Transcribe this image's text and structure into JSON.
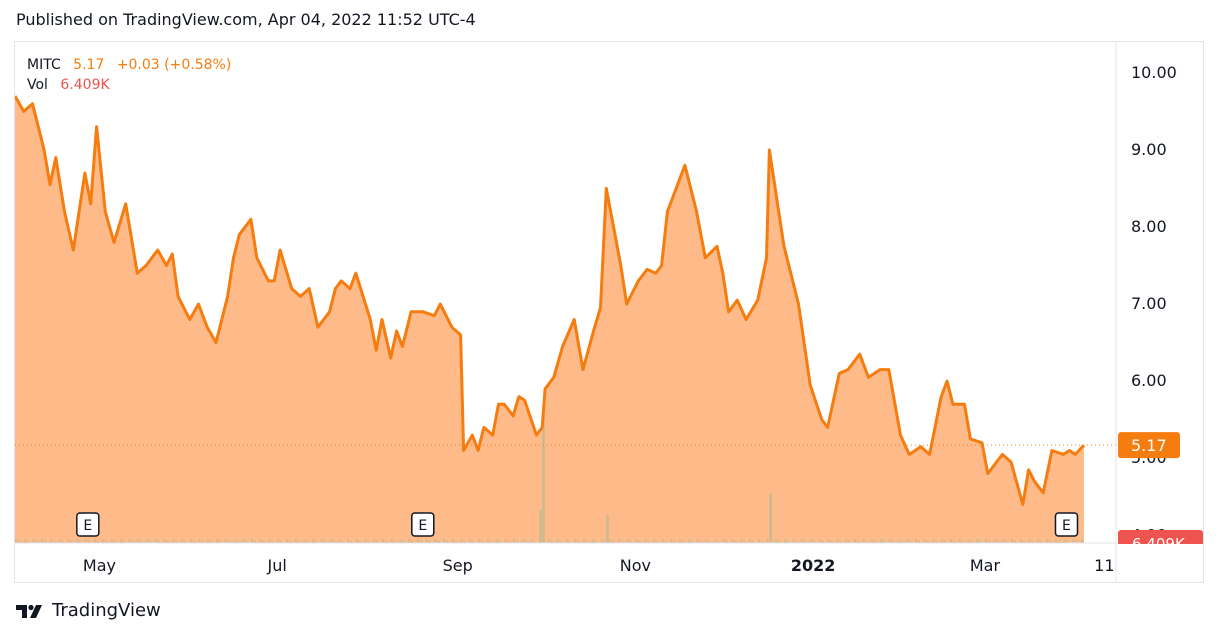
{
  "header": {
    "published": "Published on TradingView.com, Apr 04, 2022 11:52 UTC-4"
  },
  "legend": {
    "symbol": "MITC",
    "price": "5.17",
    "change": "+0.03 (+0.58%)",
    "vol_label": "Vol",
    "vol_value": "6.409K"
  },
  "footer": {
    "brand": "TradingView"
  },
  "colors": {
    "line": "#f57c0f",
    "area": "#ffb27d",
    "axis_badge": "#f57c0f",
    "volume": "#c9b98f",
    "vol_badge": "#ef5350"
  },
  "icons": [
    "tradingview-logo-icon",
    "earnings-marker-icon"
  ],
  "chart_data": {
    "type": "area",
    "title": "",
    "xlabel": "",
    "ylabel": "",
    "ylim": [
      3.9,
      10.4
    ],
    "y_ticks": [
      "10.00",
      "9.00",
      "8.00",
      "7.00",
      "6.00",
      "5.00",
      "4.00"
    ],
    "x_tick_labels": [
      "May",
      "Jul",
      "Sep",
      "Nov",
      "2022",
      "Mar",
      "11"
    ],
    "x_tick_dates": [
      "2021-05-01",
      "2021-07-01",
      "2021-09-01",
      "2021-11-01",
      "2022-01-01",
      "2022-03-01",
      "2022-04-11"
    ],
    "x_range": [
      "2021-04-02",
      "2022-04-15"
    ],
    "last_price_label": "5.17",
    "volume_badge": "6.409K",
    "grid": false,
    "earnings_markers": [
      {
        "label": "E",
        "date": "2021-04-27"
      },
      {
        "label": "E",
        "date": "2021-08-20"
      },
      {
        "label": "E",
        "date": "2022-03-29"
      }
    ],
    "series": [
      {
        "values": [
          [
            "2021-04-02",
            9.7
          ],
          [
            "2021-04-05",
            9.5
          ],
          [
            "2021-04-08",
            9.6
          ],
          [
            "2021-04-12",
            9.0
          ],
          [
            "2021-04-14",
            8.55
          ],
          [
            "2021-04-16",
            8.9
          ],
          [
            "2021-04-19",
            8.2
          ],
          [
            "2021-04-22",
            7.7
          ],
          [
            "2021-04-26",
            8.7
          ],
          [
            "2021-04-28",
            8.3
          ],
          [
            "2021-04-30",
            9.3
          ],
          [
            "2021-05-03",
            8.2
          ],
          [
            "2021-05-06",
            7.8
          ],
          [
            "2021-05-10",
            8.3
          ],
          [
            "2021-05-14",
            7.4
          ],
          [
            "2021-05-17",
            7.5
          ],
          [
            "2021-05-21",
            7.7
          ],
          [
            "2021-05-24",
            7.5
          ],
          [
            "2021-05-26",
            7.65
          ],
          [
            "2021-05-28",
            7.1
          ],
          [
            "2021-06-01",
            6.8
          ],
          [
            "2021-06-04",
            7.0
          ],
          [
            "2021-06-07",
            6.7
          ],
          [
            "2021-06-10",
            6.5
          ],
          [
            "2021-06-14",
            7.1
          ],
          [
            "2021-06-16",
            7.6
          ],
          [
            "2021-06-18",
            7.9
          ],
          [
            "2021-06-22",
            8.1
          ],
          [
            "2021-06-24",
            7.6
          ],
          [
            "2021-06-28",
            7.3
          ],
          [
            "2021-06-30",
            7.3
          ],
          [
            "2021-07-02",
            7.7
          ],
          [
            "2021-07-06",
            7.2
          ],
          [
            "2021-07-09",
            7.1
          ],
          [
            "2021-07-12",
            7.2
          ],
          [
            "2021-07-15",
            6.7
          ],
          [
            "2021-07-19",
            6.9
          ],
          [
            "2021-07-21",
            7.2
          ],
          [
            "2021-07-23",
            7.3
          ],
          [
            "2021-07-26",
            7.2
          ],
          [
            "2021-07-28",
            7.4
          ],
          [
            "2021-08-02",
            6.8
          ],
          [
            "2021-08-04",
            6.4
          ],
          [
            "2021-08-06",
            6.8
          ],
          [
            "2021-08-09",
            6.3
          ],
          [
            "2021-08-11",
            6.65
          ],
          [
            "2021-08-13",
            6.45
          ],
          [
            "2021-08-16",
            6.9
          ],
          [
            "2021-08-20",
            6.9
          ],
          [
            "2021-08-24",
            6.85
          ],
          [
            "2021-08-26",
            7.0
          ],
          [
            "2021-08-30",
            6.7
          ],
          [
            "2021-09-02",
            6.6
          ],
          [
            "2021-09-03",
            5.1
          ],
          [
            "2021-09-06",
            5.3
          ],
          [
            "2021-09-08",
            5.1
          ],
          [
            "2021-09-10",
            5.4
          ],
          [
            "2021-09-13",
            5.3
          ],
          [
            "2021-09-15",
            5.7
          ],
          [
            "2021-09-17",
            5.7
          ],
          [
            "2021-09-20",
            5.55
          ],
          [
            "2021-09-22",
            5.8
          ],
          [
            "2021-09-24",
            5.75
          ],
          [
            "2021-09-28",
            5.3
          ],
          [
            "2021-09-30",
            5.4
          ],
          [
            "2021-10-01",
            5.9
          ],
          [
            "2021-10-04",
            6.05
          ],
          [
            "2021-10-07",
            6.45
          ],
          [
            "2021-10-11",
            6.8
          ],
          [
            "2021-10-14",
            6.15
          ],
          [
            "2021-10-18",
            6.7
          ],
          [
            "2021-10-20",
            6.95
          ],
          [
            "2021-10-22",
            8.5
          ],
          [
            "2021-10-25",
            7.9
          ],
          [
            "2021-10-27",
            7.5
          ],
          [
            "2021-10-29",
            7.0
          ],
          [
            "2021-11-02",
            7.3
          ],
          [
            "2021-11-05",
            7.45
          ],
          [
            "2021-11-08",
            7.4
          ],
          [
            "2021-11-10",
            7.5
          ],
          [
            "2021-11-12",
            8.2
          ],
          [
            "2021-11-16",
            8.6
          ],
          [
            "2021-11-18",
            8.8
          ],
          [
            "2021-11-22",
            8.2
          ],
          [
            "2021-11-25",
            7.6
          ],
          [
            "2021-11-29",
            7.75
          ],
          [
            "2021-12-01",
            7.4
          ],
          [
            "2021-12-03",
            6.9
          ],
          [
            "2021-12-06",
            7.05
          ],
          [
            "2021-12-09",
            6.8
          ],
          [
            "2021-12-13",
            7.05
          ],
          [
            "2021-12-16",
            7.6
          ],
          [
            "2021-12-17",
            9.0
          ],
          [
            "2021-12-20",
            8.25
          ],
          [
            "2021-12-22",
            7.75
          ],
          [
            "2021-12-27",
            7.0
          ],
          [
            "2021-12-31",
            5.95
          ],
          [
            "2022-01-04",
            5.5
          ],
          [
            "2022-01-06",
            5.4
          ],
          [
            "2022-01-10",
            6.1
          ],
          [
            "2022-01-13",
            6.15
          ],
          [
            "2022-01-17",
            6.35
          ],
          [
            "2022-01-20",
            6.05
          ],
          [
            "2022-01-24",
            6.15
          ],
          [
            "2022-01-27",
            6.15
          ],
          [
            "2022-01-31",
            5.3
          ],
          [
            "2022-02-03",
            5.05
          ],
          [
            "2022-02-07",
            5.15
          ],
          [
            "2022-02-10",
            5.05
          ],
          [
            "2022-02-14",
            5.8
          ],
          [
            "2022-02-16",
            6.0
          ],
          [
            "2022-02-18",
            5.7
          ],
          [
            "2022-02-22",
            5.7
          ],
          [
            "2022-02-24",
            5.25
          ],
          [
            "2022-02-28",
            5.2
          ],
          [
            "2022-03-02",
            4.8
          ],
          [
            "2022-03-07",
            5.05
          ],
          [
            "2022-03-10",
            4.95
          ],
          [
            "2022-03-14",
            4.4
          ],
          [
            "2022-03-16",
            4.85
          ],
          [
            "2022-03-18",
            4.7
          ],
          [
            "2022-03-21",
            4.55
          ],
          [
            "2022-03-24",
            5.1
          ],
          [
            "2022-03-28",
            5.05
          ],
          [
            "2022-03-30",
            5.1
          ],
          [
            "2022-04-01",
            5.05
          ],
          [
            "2022-04-04",
            5.17
          ]
        ]
      }
    ],
    "volume": {
      "note": "relative volume bars, mostly small",
      "spikes": [
        [
          "2021-09-30",
          1.0
        ],
        [
          "2021-10-22",
          0.22
        ],
        [
          "2021-12-17",
          0.38
        ],
        [
          "2021-09-29",
          0.26
        ]
      ]
    }
  }
}
